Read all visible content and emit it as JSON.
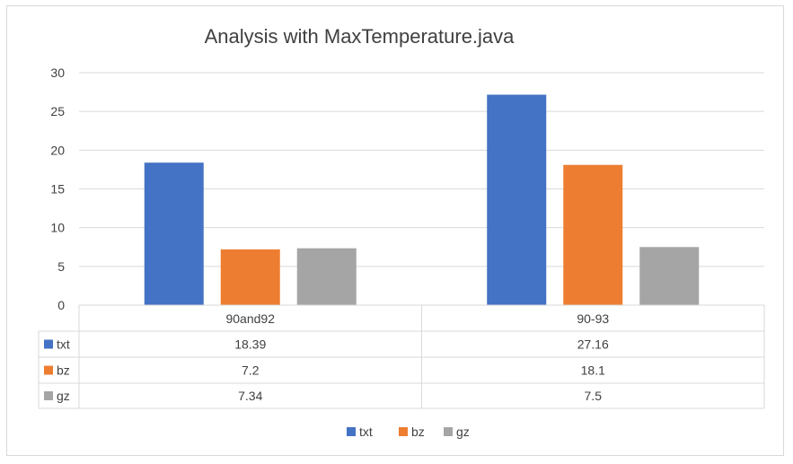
{
  "chart_data": {
    "type": "bar",
    "title": "Analysis  with MaxTemperature.java",
    "categories": [
      "90and92",
      "90-93"
    ],
    "series": [
      {
        "name": "txt",
        "values": [
          18.39,
          27.16
        ],
        "color": "#4472c4"
      },
      {
        "name": "bz",
        "values": [
          7.2,
          18.1
        ],
        "color": "#ed7d31"
      },
      {
        "name": "gz",
        "values": [
          7.34,
          7.5
        ],
        "color": "#a5a5a5"
      }
    ],
    "y_ticks": [
      "0",
      "5",
      "10",
      "15",
      "20",
      "25",
      "30"
    ],
    "ylim": [
      0,
      30
    ],
    "grid": true,
    "data_table": true,
    "table_values": [
      [
        "18.39",
        "27.16"
      ],
      [
        "7.2",
        "18.1"
      ],
      [
        "7.34",
        "7.5"
      ]
    ],
    "legend_position": "bottom"
  }
}
